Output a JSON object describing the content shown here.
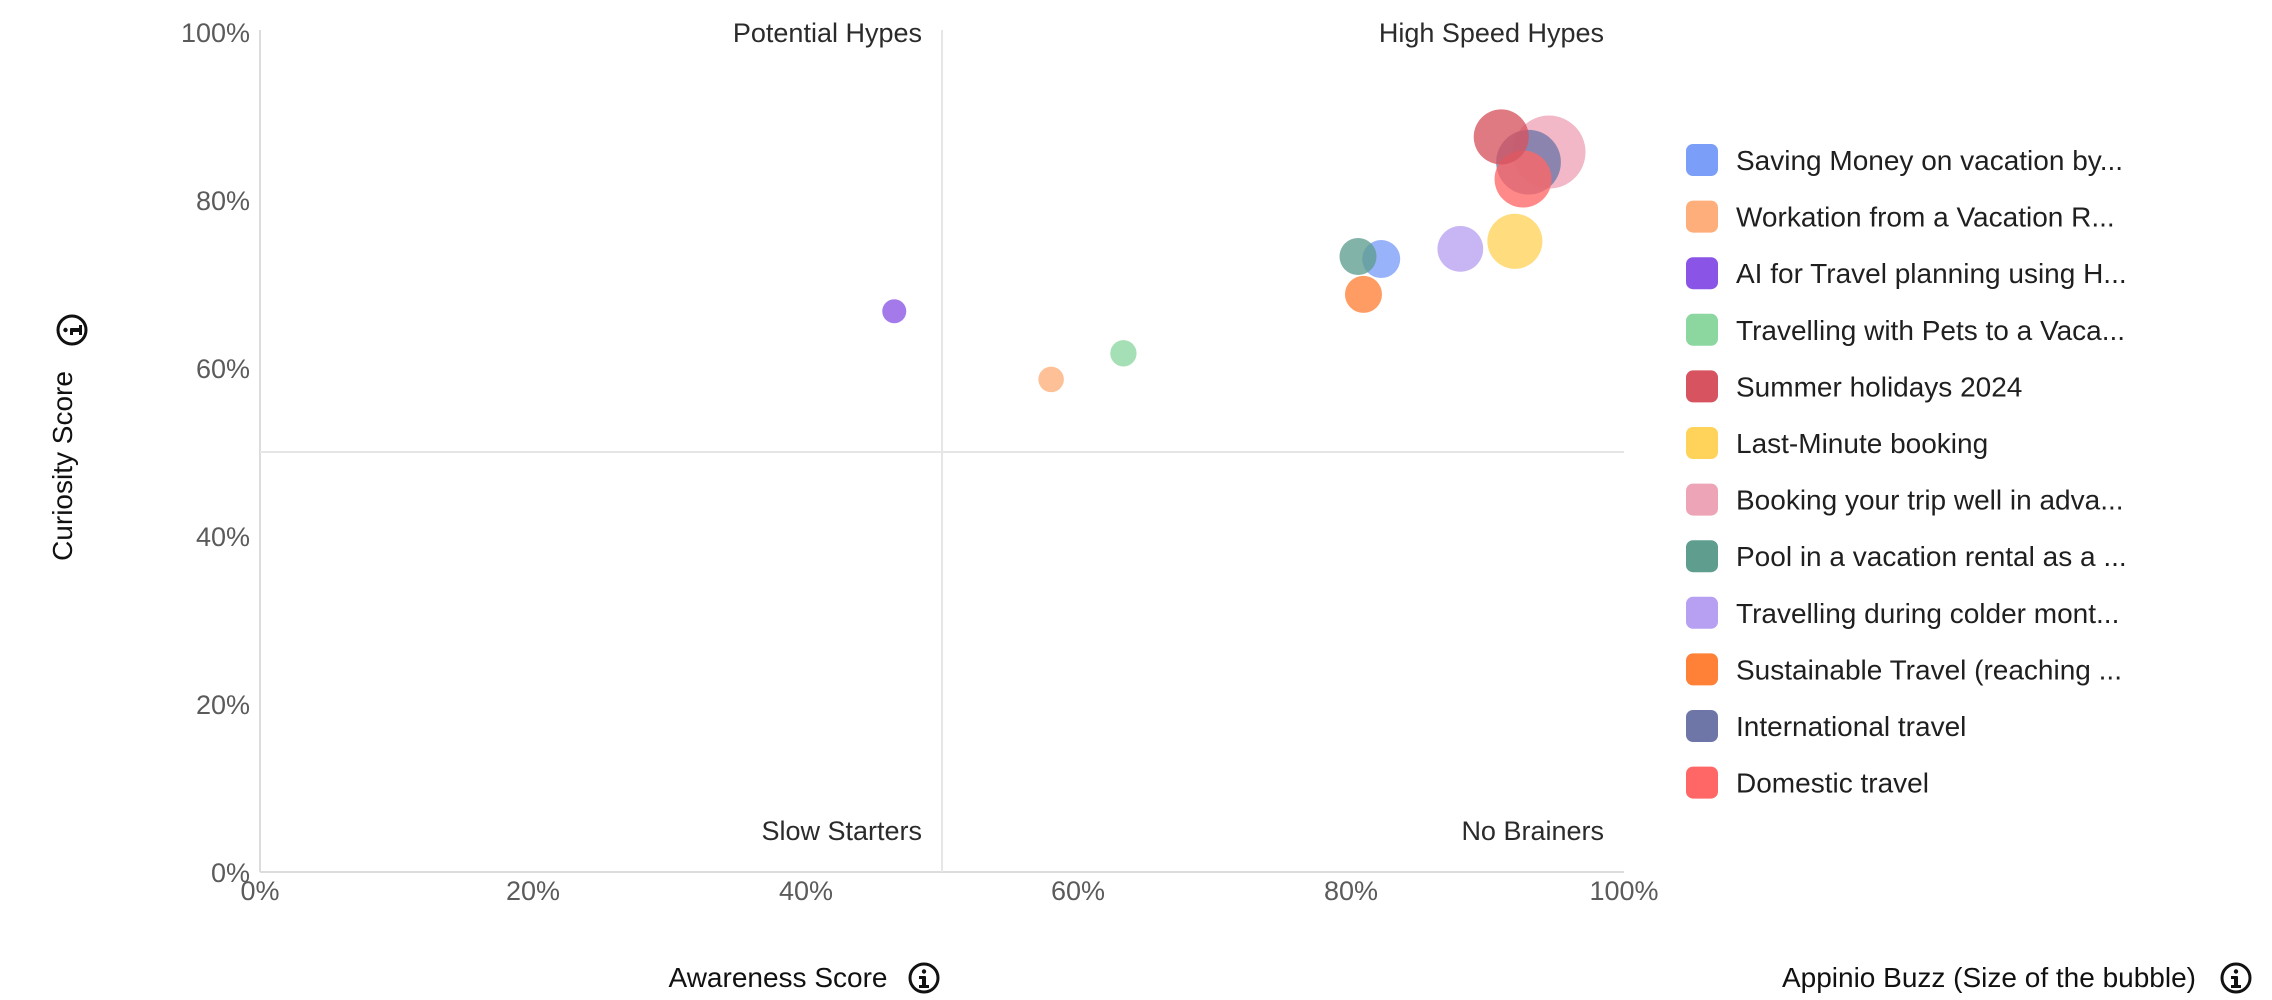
{
  "chart_data": {
    "type": "scatter",
    "x_axis": {
      "title": "Awareness Score",
      "range": [
        0,
        100
      ],
      "ticks": [
        "0%",
        "20%",
        "40%",
        "60%",
        "80%",
        "100%"
      ],
      "tick_values": [
        0,
        20,
        40,
        60,
        80,
        100
      ]
    },
    "y_axis": {
      "title": "Curiosity Score",
      "range": [
        0,
        100
      ],
      "ticks": [
        "0%",
        "20%",
        "40%",
        "60%",
        "80%",
        "100%"
      ],
      "tick_values": [
        0,
        20,
        40,
        60,
        80,
        100
      ]
    },
    "size_title": "Appinio Buzz (Size of the bubble)",
    "quadrants": {
      "top_left": "Potential Hypes",
      "top_right": "High Speed Hypes",
      "bottom_left": "Slow Starters",
      "bottom_right": "No Brainers"
    },
    "dividers": {
      "x": 50,
      "y": 50
    },
    "grid": false,
    "legend_position": "right",
    "series": [
      {
        "name": "Saving Money on vacation by...",
        "color": "#7B9EF8",
        "x": 82.2,
        "y": 72.8,
        "buzz": 1.0
      },
      {
        "name": "Workation from a Vacation R...",
        "color": "#FDAE7A",
        "x": 58.0,
        "y": 58.5,
        "buzz": 0.45
      },
      {
        "name": "AI for Travel planning using H...",
        "color": "#8A55E6",
        "x": 46.5,
        "y": 66.6,
        "buzz": 0.4
      },
      {
        "name": "Travelling with Pets to a Vaca...",
        "color": "#8CD6A0",
        "x": 63.3,
        "y": 61.6,
        "buzz": 0.48
      },
      {
        "name": "Summer holidays 2024",
        "color": "#D6535F",
        "x": 91.0,
        "y": 87.3,
        "buzz": 2.1
      },
      {
        "name": "Last-Minute booking",
        "color": "#FFD35A",
        "x": 92.0,
        "y": 74.9,
        "buzz": 2.1
      },
      {
        "name": "Booking your trip well in adva...",
        "color": "#EEA4B7",
        "x": 94.5,
        "y": 85.5,
        "buzz": 3.7
      },
      {
        "name": "Pool in a vacation rental as a ...",
        "color": "#5F9D8F",
        "x": 80.5,
        "y": 73.1,
        "buzz": 0.95
      },
      {
        "name": "Travelling during colder mont...",
        "color": "#B7A0F1",
        "x": 88.0,
        "y": 74.0,
        "buzz": 1.45
      },
      {
        "name": "Sustainable Travel (reaching ...",
        "color": "#FF8037",
        "x": 80.9,
        "y": 68.6,
        "buzz": 0.95
      },
      {
        "name": "International travel",
        "color": "#6D76A7",
        "x": 93.0,
        "y": 84.3,
        "buzz": 2.9
      },
      {
        "name": "Domestic travel",
        "color": "#FF6666",
        "x": 92.6,
        "y": 82.3,
        "buzz": 2.25
      }
    ]
  }
}
